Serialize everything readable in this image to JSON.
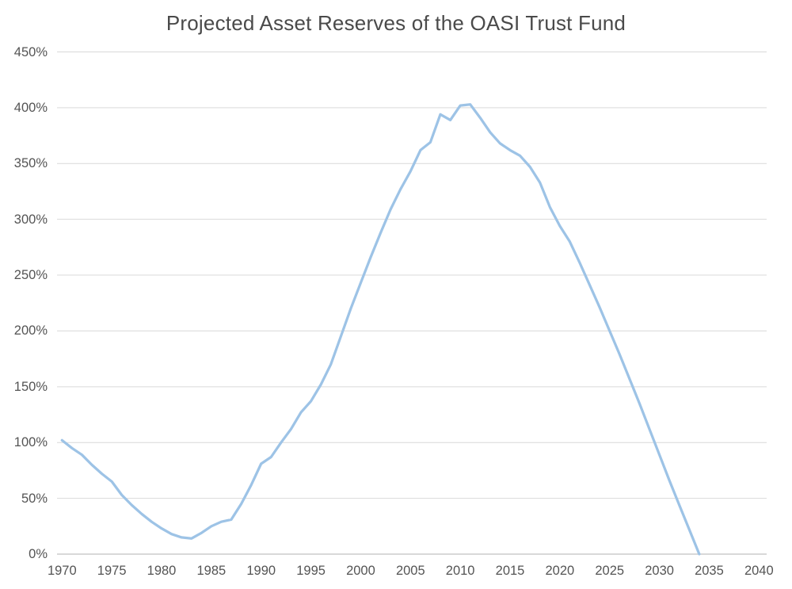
{
  "page": {
    "background_color": "#ffffff"
  },
  "chart_data": {
    "type": "line",
    "title": "Projected Asset Reserves of the OASI Trust Fund",
    "xlabel": "",
    "ylabel": "",
    "legend": "none",
    "grid": "horizontal-only",
    "ylim": [
      0,
      450
    ],
    "xlim": [
      1969.5,
      2041
    ],
    "y_ticks": [
      {
        "value": 0,
        "label": "0%"
      },
      {
        "value": 50,
        "label": "50%"
      },
      {
        "value": 100,
        "label": "100%"
      },
      {
        "value": 150,
        "label": "150%"
      },
      {
        "value": 200,
        "label": "200%"
      },
      {
        "value": 250,
        "label": "250%"
      },
      {
        "value": 300,
        "label": "300%"
      },
      {
        "value": 350,
        "label": "350%"
      },
      {
        "value": 400,
        "label": "400%"
      },
      {
        "value": 450,
        "label": "450%"
      }
    ],
    "x_ticks": [
      1970,
      1975,
      1980,
      1985,
      1990,
      1995,
      2000,
      2005,
      2010,
      2015,
      2020,
      2025,
      2030,
      2035,
      2040
    ],
    "x": [
      1970,
      1971,
      1972,
      1973,
      1974,
      1975,
      1976,
      1977,
      1978,
      1979,
      1980,
      1981,
      1982,
      1983,
      1984,
      1985,
      1986,
      1987,
      1988,
      1989,
      1990,
      1991,
      1992,
      1993,
      1994,
      1995,
      1996,
      1997,
      1998,
      1999,
      2000,
      2001,
      2002,
      2003,
      2004,
      2005,
      2006,
      2007,
      2008,
      2009,
      2010,
      2011,
      2012,
      2013,
      2014,
      2015,
      2016,
      2017,
      2018,
      2019,
      2020,
      2021,
      2022,
      2023,
      2024,
      2025,
      2026,
      2027,
      2028,
      2029,
      2030,
      2031,
      2032,
      2033,
      2034
    ],
    "values": [
      102,
      95,
      89,
      80,
      72,
      65,
      53,
      44,
      36,
      29,
      23,
      18,
      15,
      14,
      19,
      25,
      29,
      31,
      45,
      62,
      81,
      87,
      100,
      112,
      127,
      137,
      152,
      170,
      195,
      220,
      243,
      266,
      288,
      309,
      327,
      343,
      362,
      369,
      394,
      389,
      402,
      403,
      391,
      378,
      368,
      362,
      357,
      347,
      333,
      311,
      294,
      280,
      261,
      241,
      221,
      200,
      179,
      157,
      135,
      112,
      89,
      66,
      44,
      22,
      0
    ],
    "line_color": "#9dc3e6",
    "gridline_color": "#d9d9d9",
    "axis_line_color": "#c0c0c0",
    "title_color": "#4a4a4a",
    "tick_text_color": "#545454"
  }
}
